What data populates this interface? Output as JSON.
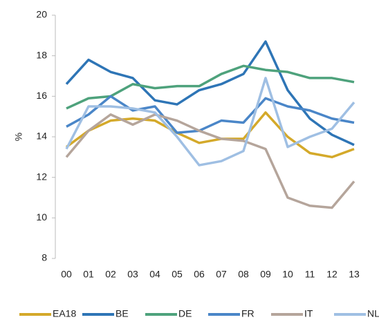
{
  "chart_data": {
    "type": "line",
    "y_label": "%",
    "categories": [
      "00",
      "01",
      "02",
      "03",
      "04",
      "05",
      "06",
      "07",
      "08",
      "09",
      "10",
      "11",
      "12",
      "13"
    ],
    "series": [
      {
        "name": "EA18",
        "color": "#d4a92a",
        "values": [
          13.5,
          14.3,
          14.8,
          14.9,
          14.8,
          14.2,
          13.7,
          13.9,
          13.9,
          15.2,
          14.0,
          13.2,
          13.0,
          13.4
        ]
      },
      {
        "name": "BE",
        "color": "#2e75b6",
        "values": [
          16.6,
          17.8,
          17.2,
          16.9,
          15.8,
          15.6,
          16.3,
          16.6,
          17.1,
          18.7,
          16.3,
          14.9,
          14.1,
          13.6
        ]
      },
      {
        "name": "DE",
        "color": "#4ea27c",
        "values": [
          15.4,
          15.9,
          16.0,
          16.6,
          16.4,
          16.5,
          16.5,
          17.1,
          17.5,
          17.3,
          17.2,
          16.9,
          16.9,
          16.7
        ]
      },
      {
        "name": "FR",
        "color": "#4a86c8",
        "values": [
          14.5,
          15.1,
          16.0,
          15.3,
          15.5,
          14.2,
          14.3,
          14.8,
          14.7,
          15.9,
          15.5,
          15.3,
          14.9,
          14.7
        ]
      },
      {
        "name": "IT",
        "color": "#b5a59b",
        "values": [
          13.0,
          14.3,
          15.1,
          14.6,
          15.1,
          14.8,
          14.3,
          13.9,
          13.8,
          13.4,
          11.0,
          10.6,
          10.5,
          11.8
        ]
      },
      {
        "name": "NL",
        "color": "#9fbfe3",
        "values": [
          13.4,
          15.5,
          15.5,
          15.4,
          15.2,
          14.0,
          12.6,
          12.8,
          13.3,
          16.9,
          13.5,
          14.0,
          14.4,
          15.7
        ]
      }
    ],
    "ylim": [
      8,
      20
    ],
    "yticks": [
      8,
      10,
      12,
      14,
      16,
      18,
      20
    ],
    "grid": false,
    "legend": "bottom"
  }
}
